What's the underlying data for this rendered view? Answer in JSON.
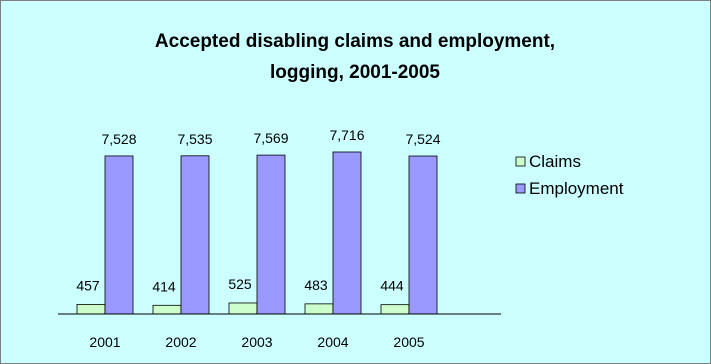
{
  "chart_data": {
    "type": "bar",
    "title_line1": "Accepted disabling claims and employment,",
    "title_line2": "logging, 2001-2005",
    "categories": [
      "2001",
      "2002",
      "2003",
      "2004",
      "2005"
    ],
    "series": [
      {
        "name": "Claims",
        "values": [
          457,
          414,
          525,
          483,
          444
        ],
        "labels": [
          "457",
          "414",
          "525",
          "483",
          "444"
        ],
        "color": "#ccffcc"
      },
      {
        "name": "Employment",
        "values": [
          7528,
          7535,
          7569,
          7716,
          7524
        ],
        "labels": [
          "7,528",
          "7,535",
          "7,569",
          "7,716",
          "7,524"
        ],
        "color": "#9999ff"
      }
    ],
    "ylim": [
      0,
      7716
    ],
    "grid": false,
    "legend_position": "right"
  },
  "colors": {
    "background": "#ccffff",
    "border": "#7f7f7f",
    "axis": "#000000"
  }
}
